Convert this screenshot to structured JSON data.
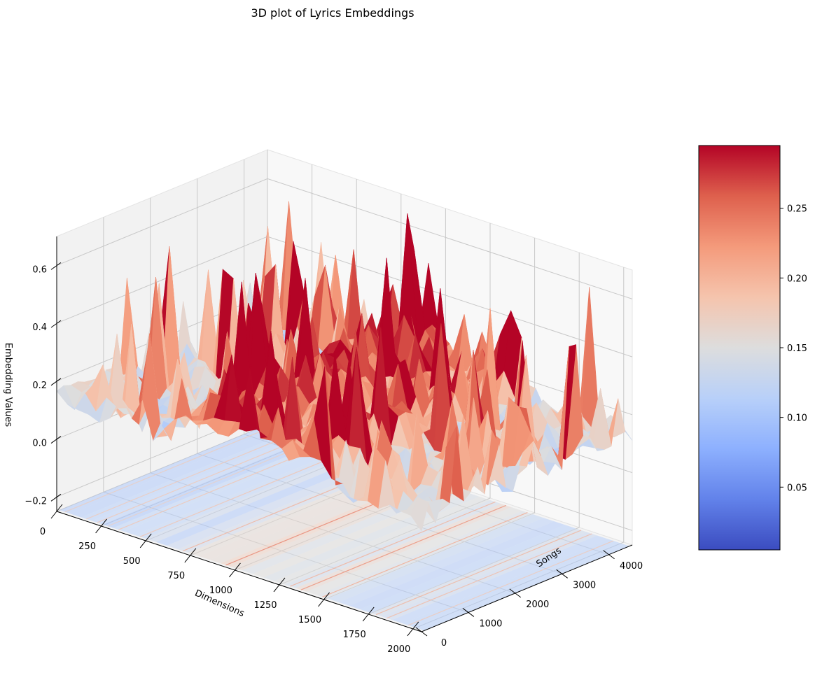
{
  "chart_data": {
    "type": "surface3d",
    "title": "3D plot of Lyrics Embeddings",
    "xlabel": "Dimensions",
    "ylabel": "Songs",
    "zlabel": "Embedding Values",
    "xlim": [
      0,
      2048
    ],
    "ylim": [
      0,
      4500
    ],
    "zlim": [
      -0.25,
      0.7
    ],
    "x_ticks": [
      "0",
      "250",
      "500",
      "750",
      "1000",
      "1250",
      "1500",
      "1750",
      "2000"
    ],
    "y_ticks": [
      "0",
      "1000",
      "2000",
      "3000",
      "4000"
    ],
    "z_ticks": [
      "−0.2",
      "0.0",
      "0.2",
      "0.4",
      "0.6"
    ],
    "colormap": "coolwarm",
    "colorbar": {
      "min": 0.005,
      "max": 0.295,
      "ticks": [
        "0.05",
        "0.10",
        "0.15",
        "0.20",
        "0.25"
      ]
    },
    "grid": true,
    "floor_contour": true
  }
}
